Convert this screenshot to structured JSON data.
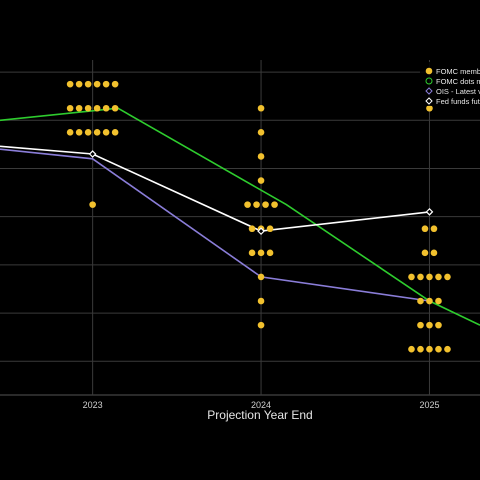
{
  "chart_data": {
    "type": "scatter",
    "title": "",
    "xlabel": "Projection Year End",
    "ylabel": "",
    "categories": [
      "2023",
      "2024",
      "2025"
    ],
    "x_range_years": [
      2022.45,
      2025.3
    ],
    "y_range": [
      2.4,
      6.0
    ],
    "y_gridlines": [
      2.75,
      3.25,
      3.75,
      4.25,
      4.75,
      5.25,
      5.75
    ],
    "grid": true,
    "background": "#000000",
    "legend_position": "top-right",
    "legend": [
      {
        "label": "FOMC member",
        "marker": "dot",
        "color": "#f2c12e"
      },
      {
        "label": "FOMC dots me",
        "marker": "line",
        "color": "#2ecc2e"
      },
      {
        "label": "OIS - Latest v",
        "marker": "diamond",
        "color": "#8a7dd8"
      },
      {
        "label": "Fed funds fut",
        "marker": "diamond",
        "color": "#ffffff"
      }
    ],
    "dot_color": "#f2c12e",
    "dots": [
      {
        "x": 2023,
        "y": 5.625,
        "count": 6
      },
      {
        "x": 2023,
        "y": 5.375,
        "count": 6
      },
      {
        "x": 2023,
        "y": 5.125,
        "count": 6
      },
      {
        "x": 2023,
        "y": 4.375,
        "count": 1
      },
      {
        "x": 2024,
        "y": 5.375,
        "count": 1
      },
      {
        "x": 2024,
        "y": 5.125,
        "count": 1
      },
      {
        "x": 2024,
        "y": 4.875,
        "count": 1
      },
      {
        "x": 2024,
        "y": 4.625,
        "count": 1
      },
      {
        "x": 2024,
        "y": 4.375,
        "count": 4
      },
      {
        "x": 2024,
        "y": 4.125,
        "count": 3
      },
      {
        "x": 2024,
        "y": 3.875,
        "count": 3
      },
      {
        "x": 2024,
        "y": 3.625,
        "count": 1
      },
      {
        "x": 2024,
        "y": 3.375,
        "count": 1
      },
      {
        "x": 2024,
        "y": 3.125,
        "count": 1
      },
      {
        "x": 2025,
        "y": 5.375,
        "count": 1
      },
      {
        "x": 2025,
        "y": 4.125,
        "count": 2
      },
      {
        "x": 2025,
        "y": 3.875,
        "count": 2
      },
      {
        "x": 2025,
        "y": 3.625,
        "count": 5
      },
      {
        "x": 2025,
        "y": 3.375,
        "count": 3
      },
      {
        "x": 2025,
        "y": 3.125,
        "count": 3
      },
      {
        "x": 2025,
        "y": 2.875,
        "count": 5
      }
    ],
    "series": [
      {
        "color": "#2ecc2e",
        "marker": "none",
        "points": [
          [
            2022.45,
            5.25
          ],
          [
            2023.15,
            5.375
          ],
          [
            2024.15,
            4.375
          ],
          [
            2025.0,
            3.375
          ],
          [
            2025.3,
            3.125
          ]
        ]
      },
      {
        "color": "#8a7dd8",
        "marker": "none",
        "points": [
          [
            2022.45,
            4.95
          ],
          [
            2023.0,
            4.85
          ],
          [
            2024.0,
            3.625
          ],
          [
            2025.0,
            3.375
          ]
        ]
      },
      {
        "color": "#ffffff",
        "marker": "diamond",
        "points": [
          [
            2022.45,
            4.98
          ],
          [
            2023.0,
            4.9
          ],
          [
            2024.0,
            4.1
          ],
          [
            2025.0,
            4.3
          ]
        ]
      }
    ]
  }
}
